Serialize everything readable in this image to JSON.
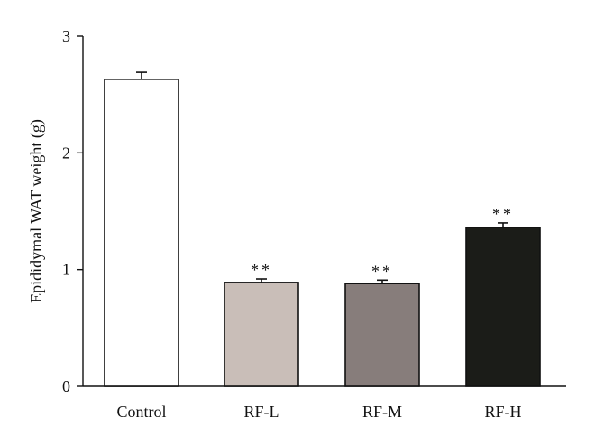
{
  "chart_data": {
    "type": "bar",
    "title": "",
    "xlabel": "",
    "ylabel": "Epididymal WAT weight (g)",
    "ylim": [
      0,
      3
    ],
    "yticks": [
      0,
      1,
      2,
      3
    ],
    "categories": [
      "Control",
      "RF-L",
      "RF-M",
      "RF-H"
    ],
    "values": [
      2.63,
      0.89,
      0.88,
      1.36
    ],
    "errors": [
      0.06,
      0.03,
      0.03,
      0.04
    ],
    "annotations": [
      "",
      "**",
      "**",
      "**"
    ],
    "bar_colors": [
      "#ffffff",
      "#c9beb8",
      "#877d7b",
      "#1b1c18"
    ],
    "grid": false,
    "legend": "none"
  }
}
